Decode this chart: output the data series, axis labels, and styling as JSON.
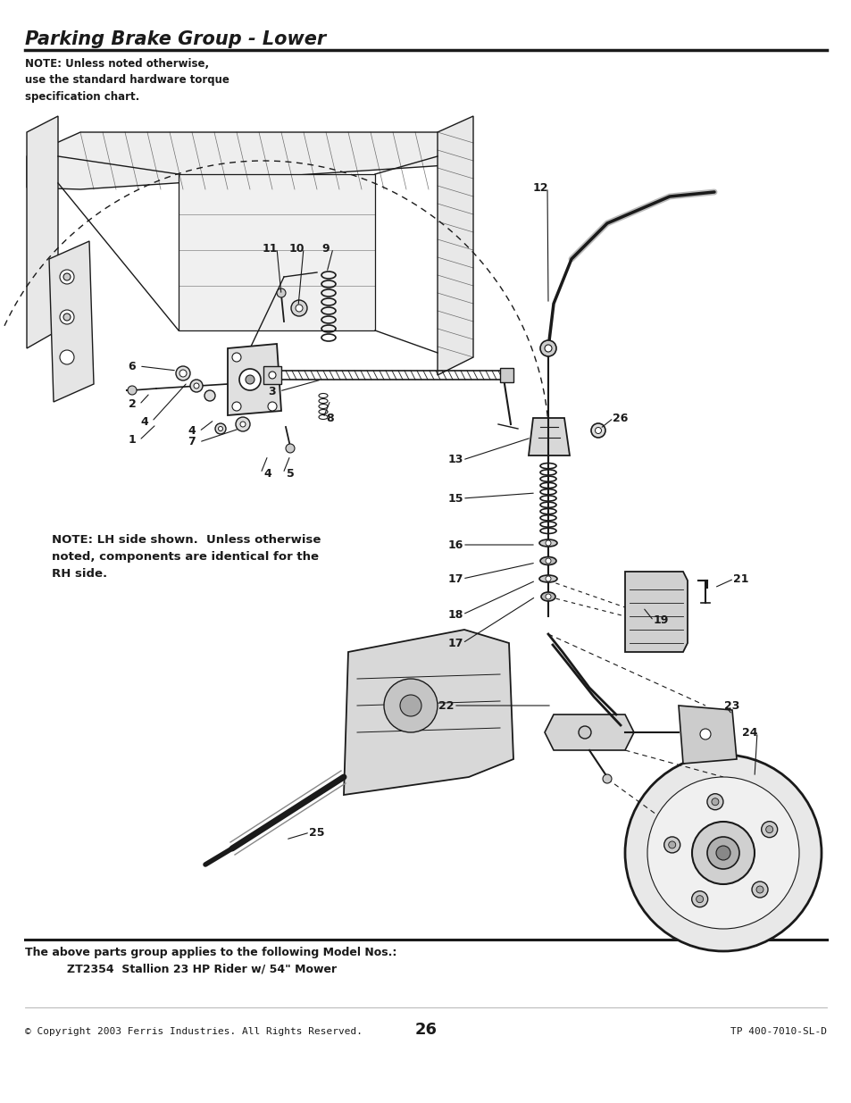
{
  "title": "Parking Brake Group - Lower",
  "note_top": "NOTE: Unless noted otherwise,\nuse the standard hardware torque\nspecification chart.",
  "note_mid": "NOTE: LH side shown.  Unless otherwise\nnoted, components are identical for the\nRH side.",
  "footer_left": "© Copyright 2003 Ferris Industries. All Rights Reserved.",
  "footer_center": "26",
  "footer_right": "TP 400-7010-SL-D",
  "model_header": "The above parts group applies to the following Model Nos.:",
  "model_line": "ZT2354  Stallion 23 HP Rider w/ 54\" Mower",
  "bg_color": "#ffffff",
  "text_color": "#000000",
  "title_fontsize": 15,
  "note_fontsize": 8.5,
  "footer_fontsize": 8,
  "model_fontsize": 9,
  "label_fontsize": 9
}
